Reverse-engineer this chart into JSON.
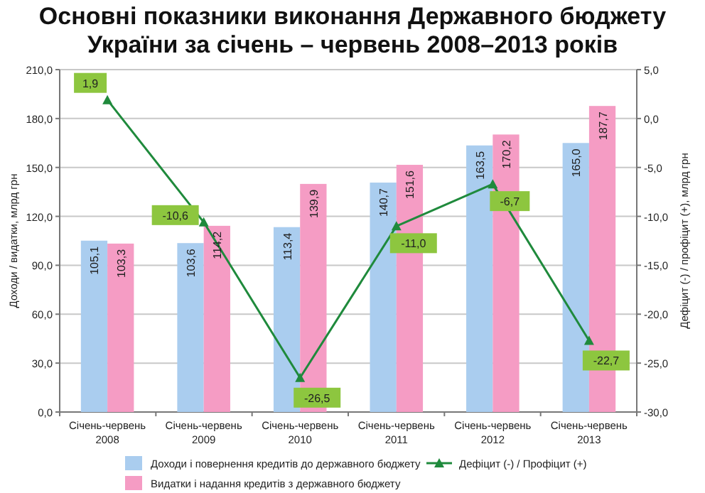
{
  "chart_data": {
    "type": "bar",
    "title": "Основні показники виконання Державного бюджету\nУкраїни за січень – червень 2008–2013 років",
    "categories": [
      "Січень-червень\n2008",
      "Січень-червень\n2009",
      "Січень-червень\n2010",
      "Січень-червень\n2011",
      "Січень-червень\n2012",
      "Січень-червень\n2013"
    ],
    "ylabel": "Доходи / видатки, млрд грн",
    "y2label": "Дефіцит (-) / профіцит (+), млрд грн",
    "ylim": [
      0,
      210
    ],
    "yticks": [
      {
        "value": 0,
        "label": "0,0"
      },
      {
        "value": 30,
        "label": "30,0"
      },
      {
        "value": 60,
        "label": "60,0"
      },
      {
        "value": 90,
        "label": "90,0"
      },
      {
        "value": 120,
        "label": "120,0"
      },
      {
        "value": 150,
        "label": "150,0"
      },
      {
        "value": 180,
        "label": "180,0"
      },
      {
        "value": 210,
        "label": "210,0"
      }
    ],
    "y2lim": [
      -30,
      5
    ],
    "y2ticks": [
      {
        "value": -30,
        "label": "-30,0"
      },
      {
        "value": -25,
        "label": "-25,0"
      },
      {
        "value": -20,
        "label": "-20,0"
      },
      {
        "value": -15,
        "label": "-15,0"
      },
      {
        "value": -10,
        "label": "-10,0"
      },
      {
        "value": -5,
        "label": "-5,0"
      },
      {
        "value": 0,
        "label": "0,0"
      },
      {
        "value": 5,
        "label": "5,0"
      }
    ],
    "grid": "y",
    "legend": "bottom",
    "series": [
      {
        "name": "Доходи і повернення кредитів до державного бюджету",
        "color": "#aacdef",
        "values": [
          105.1,
          103.6,
          113.4,
          140.7,
          163.5,
          165.0
        ],
        "value_labels": [
          "105,1",
          "103,6",
          "113,4",
          "140,7",
          "163,5",
          "165,0"
        ]
      },
      {
        "name": "Видатки і надання кредитів з державного бюджету",
        "color": "#f59cc4",
        "values": [
          103.3,
          114.2,
          139.9,
          151.6,
          170.2,
          187.7
        ],
        "value_labels": [
          "103,3",
          "114,2",
          "139,9",
          "151,6",
          "170,2",
          "187,7"
        ]
      },
      {
        "name": "Дефіцит (-) / Профіцит (+)",
        "type": "line",
        "axis": "y2",
        "color": "#1f8a3c",
        "marker": "triangle",
        "values": [
          1.9,
          -10.6,
          -26.5,
          -11.0,
          -6.7,
          -22.7
        ],
        "value_labels": [
          "1,9",
          "-10,6",
          "-26,5",
          "-11,0",
          "-6,7",
          "-22,7"
        ]
      }
    ]
  }
}
